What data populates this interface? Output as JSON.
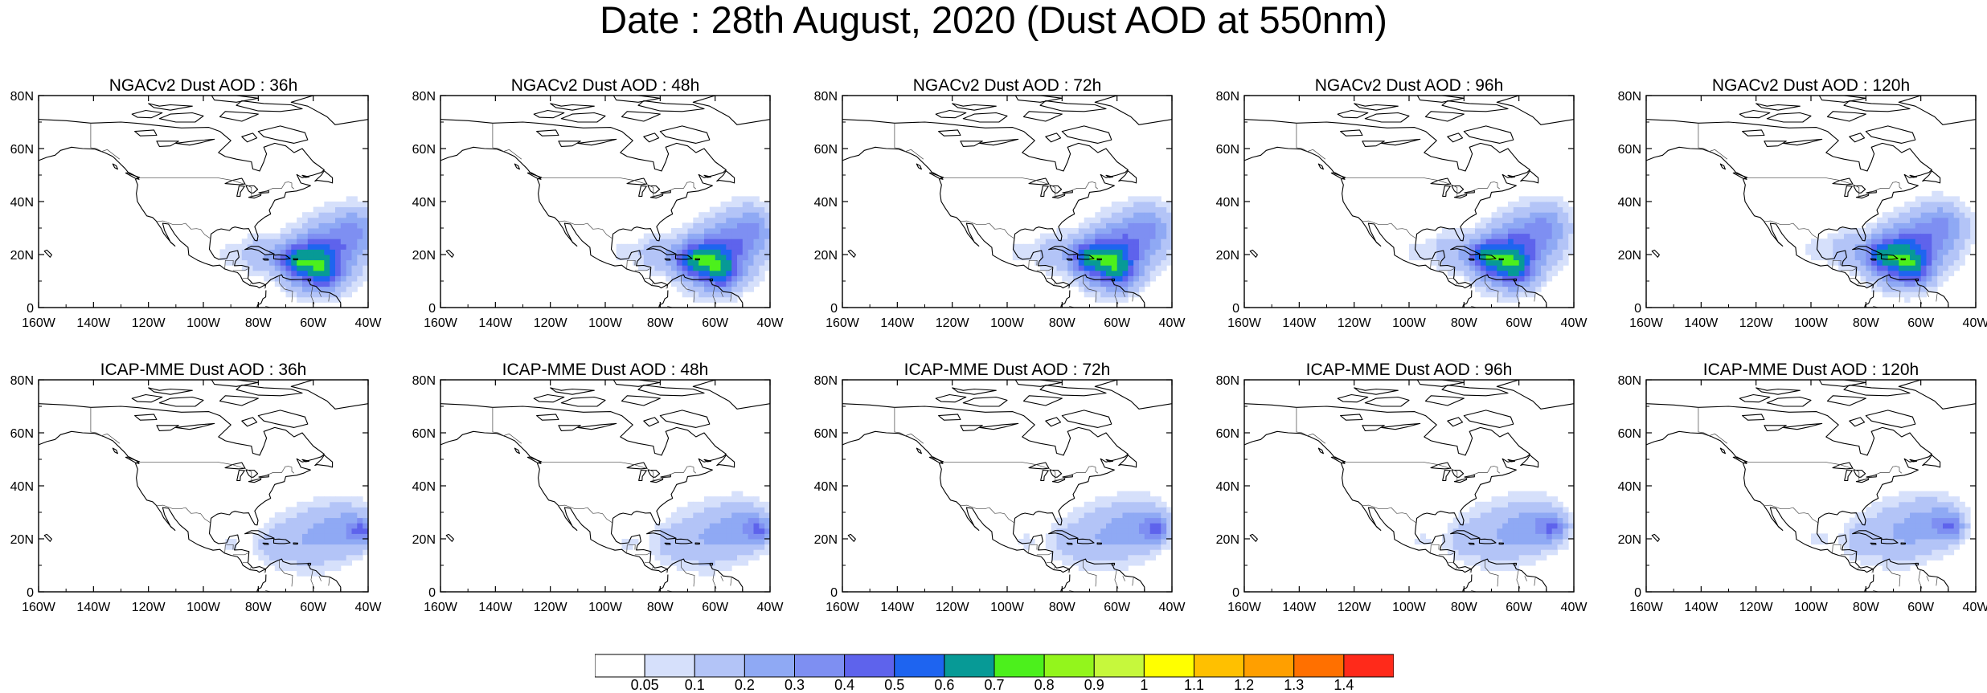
{
  "title": "Date : 28th August, 2020 (Dust AOD at 550nm)",
  "panels": [
    {
      "title": "NGACv2 Dust AOD : 36h"
    },
    {
      "title": "NGACv2 Dust AOD : 48h"
    },
    {
      "title": "NGACv2 Dust AOD : 72h"
    },
    {
      "title": "NGACv2 Dust AOD : 96h"
    },
    {
      "title": "NGACv2 Dust AOD : 120h"
    },
    {
      "title": "ICAP-MME Dust AOD : 36h"
    },
    {
      "title": "ICAP-MME Dust AOD : 48h"
    },
    {
      "title": "ICAP-MME Dust AOD : 72h"
    },
    {
      "title": "ICAP-MME Dust AOD : 96h"
    },
    {
      "title": "ICAP-MME Dust AOD : 120h"
    }
  ],
  "axes": {
    "lon_ticks": [
      "160W",
      "140W",
      "120W",
      "100W",
      "80W",
      "60W",
      "40W"
    ],
    "lat_ticks": [
      "0",
      "20N",
      "40N",
      "60N",
      "80N"
    ]
  },
  "colorbar": {
    "colors": [
      "#ffffff",
      "#d6e0fb",
      "#b3c4f7",
      "#8fa9f4",
      "#7e8ff2",
      "#5e63ec",
      "#1e64f0",
      "#079a96",
      "#4cf01c",
      "#93f51c",
      "#c6f83c",
      "#ffff00",
      "#ffc000",
      "#ff9f00",
      "#ff7000",
      "#ff2a1a"
    ],
    "labels": [
      "0.05",
      "0.1",
      "0.2",
      "0.3",
      "0.4",
      "0.5",
      "0.6",
      "0.7",
      "0.8",
      "0.9",
      "1",
      "1.1",
      "1.2",
      "1.3",
      "1.4"
    ]
  }
}
